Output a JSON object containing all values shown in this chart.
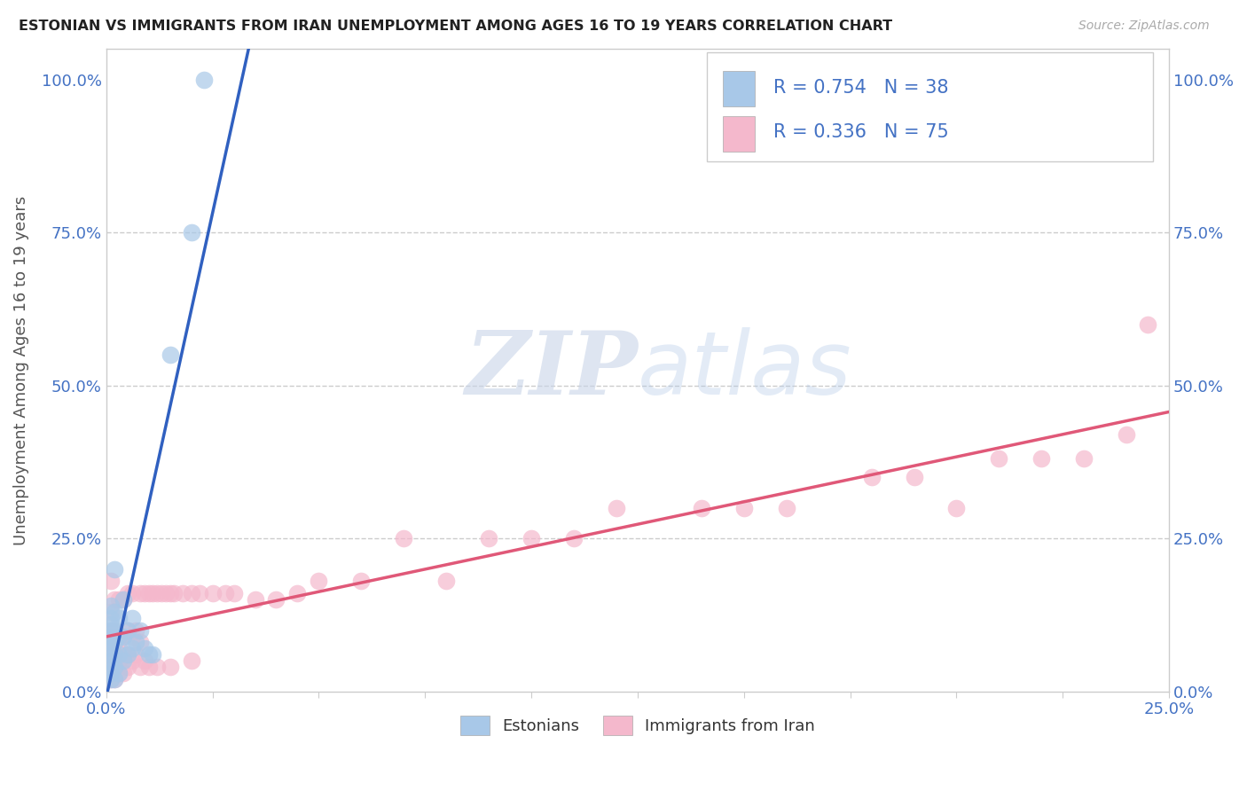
{
  "title": "ESTONIAN VS IMMIGRANTS FROM IRAN UNEMPLOYMENT AMONG AGES 16 TO 19 YEARS CORRELATION CHART",
  "source": "Source: ZipAtlas.com",
  "ylabel": "Unemployment Among Ages 16 to 19 years",
  "legend_label1": "Estonians",
  "legend_label2": "Immigrants from Iran",
  "watermark_zip": "ZIP",
  "watermark_atlas": "atlas",
  "color_estonian": "#a8c8e8",
  "color_iran": "#f4b8cc",
  "color_line_estonian": "#3060c0",
  "color_line_iran": "#e05878",
  "color_axis": "#4472c4",
  "xlim": [
    0.0,
    0.25
  ],
  "ylim": [
    0.0,
    1.05
  ],
  "figsize": [
    14.06,
    8.92
  ],
  "dpi": 100,
  "estonian_x": [
    0.001,
    0.001,
    0.001,
    0.001,
    0.001,
    0.001,
    0.001,
    0.001,
    0.001,
    0.001,
    0.001,
    0.001,
    0.002,
    0.002,
    0.002,
    0.002,
    0.002,
    0.002,
    0.002,
    0.003,
    0.003,
    0.003,
    0.003,
    0.004,
    0.004,
    0.004,
    0.005,
    0.005,
    0.006,
    0.006,
    0.007,
    0.008,
    0.009,
    0.01,
    0.011,
    0.015,
    0.02,
    0.023
  ],
  "estonian_y": [
    0.02,
    0.03,
    0.04,
    0.05,
    0.06,
    0.07,
    0.08,
    0.09,
    0.1,
    0.11,
    0.12,
    0.14,
    0.02,
    0.04,
    0.06,
    0.08,
    0.1,
    0.13,
    0.2,
    0.03,
    0.06,
    0.09,
    0.12,
    0.05,
    0.09,
    0.15,
    0.06,
    0.1,
    0.07,
    0.12,
    0.08,
    0.1,
    0.07,
    0.06,
    0.06,
    0.55,
    0.75,
    1.0
  ],
  "iran_x": [
    0.001,
    0.001,
    0.001,
    0.001,
    0.001,
    0.001,
    0.001,
    0.002,
    0.002,
    0.002,
    0.002,
    0.002,
    0.002,
    0.003,
    0.003,
    0.003,
    0.003,
    0.003,
    0.004,
    0.004,
    0.004,
    0.004,
    0.005,
    0.005,
    0.005,
    0.005,
    0.006,
    0.006,
    0.006,
    0.007,
    0.007,
    0.008,
    0.008,
    0.008,
    0.009,
    0.009,
    0.01,
    0.01,
    0.011,
    0.012,
    0.012,
    0.013,
    0.014,
    0.015,
    0.015,
    0.016,
    0.018,
    0.02,
    0.02,
    0.022,
    0.025,
    0.028,
    0.03,
    0.035,
    0.04,
    0.045,
    0.05,
    0.06,
    0.07,
    0.08,
    0.09,
    0.1,
    0.11,
    0.12,
    0.14,
    0.15,
    0.16,
    0.18,
    0.19,
    0.2,
    0.21,
    0.22,
    0.23,
    0.24,
    0.245
  ],
  "iran_y": [
    0.02,
    0.04,
    0.06,
    0.08,
    0.1,
    0.13,
    0.18,
    0.02,
    0.04,
    0.06,
    0.08,
    0.1,
    0.15,
    0.03,
    0.05,
    0.07,
    0.09,
    0.15,
    0.03,
    0.06,
    0.09,
    0.15,
    0.04,
    0.06,
    0.1,
    0.16,
    0.05,
    0.09,
    0.16,
    0.06,
    0.1,
    0.04,
    0.08,
    0.16,
    0.05,
    0.16,
    0.04,
    0.16,
    0.16,
    0.04,
    0.16,
    0.16,
    0.16,
    0.04,
    0.16,
    0.16,
    0.16,
    0.05,
    0.16,
    0.16,
    0.16,
    0.16,
    0.16,
    0.15,
    0.15,
    0.16,
    0.18,
    0.18,
    0.25,
    0.18,
    0.25,
    0.25,
    0.25,
    0.3,
    0.3,
    0.3,
    0.3,
    0.35,
    0.35,
    0.3,
    0.38,
    0.38,
    0.38,
    0.42,
    0.6
  ]
}
